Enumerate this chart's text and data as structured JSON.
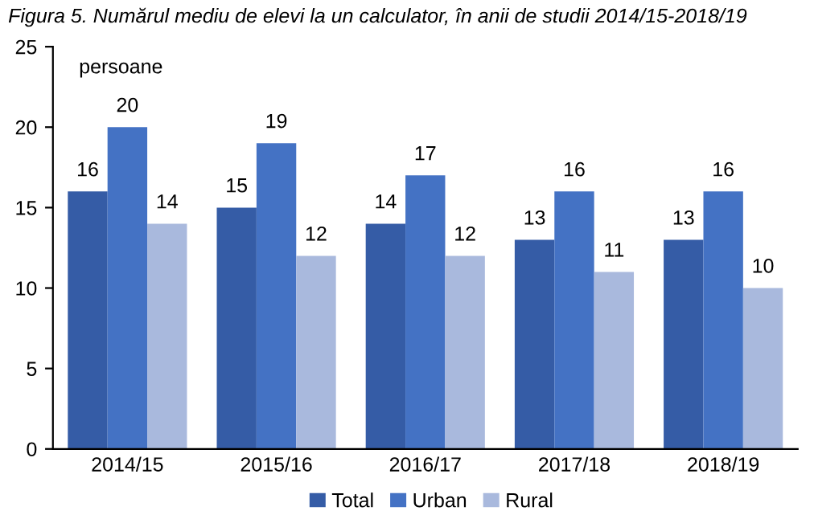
{
  "chart_data": {
    "type": "bar",
    "title": "Figura 5. Numărul mediu de elevi la un calculator, în anii de studii 2014/15-2018/19",
    "ylabel": "persoane",
    "categories": [
      "2014/15",
      "2015/16",
      "2016/17",
      "2017/18",
      "2018/19"
    ],
    "series": [
      {
        "name": "Total",
        "color": "#355ca6",
        "values": [
          16,
          15,
          14,
          13,
          13
        ]
      },
      {
        "name": "Urban",
        "color": "#4472c4",
        "values": [
          20,
          19,
          17,
          16,
          16
        ]
      },
      {
        "name": "Rural",
        "color": "#a9b9dd",
        "values": [
          14,
          12,
          12,
          11,
          10
        ]
      }
    ],
    "ylim": [
      0,
      25
    ],
    "yticks": [
      0,
      5,
      10,
      15,
      20,
      25
    ],
    "data_labels": true,
    "legend": "bottom",
    "grid": false
  }
}
